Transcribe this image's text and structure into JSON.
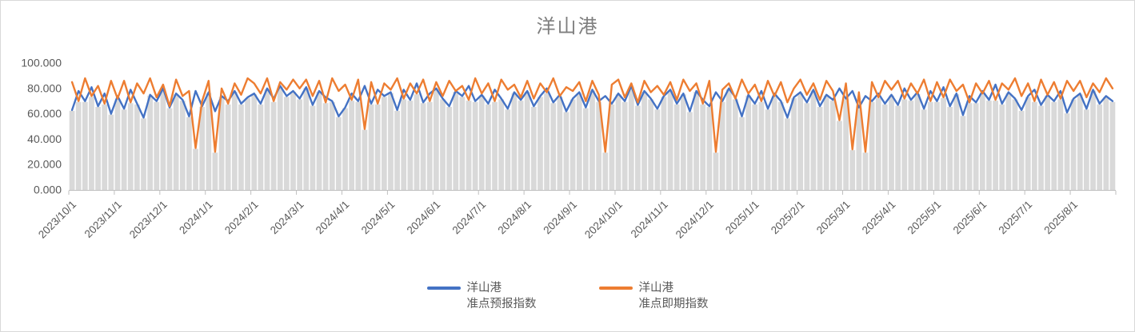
{
  "title": "洋山港",
  "colors": {
    "forecast_line": "#4472C4",
    "spot_line": "#ED7D31",
    "background_bar": "#D9D9D9",
    "axis_line": "#BFBFBF",
    "axis_text": "#595959",
    "title_text": "#7F7F7F"
  },
  "legend": {
    "position": "bottom",
    "items": [
      {
        "line1": "洋山港",
        "line2": "准点预报指数",
        "color": "#4472C4"
      },
      {
        "line1": "洋山港",
        "line2": "准点即期指数",
        "color": "#ED7D31"
      }
    ]
  },
  "chart_data": {
    "type": "line",
    "title": "洋山港",
    "xlabel": "",
    "ylabel": "",
    "ylim": [
      0,
      100
    ],
    "grid": false,
    "legend_position": "bottom",
    "y_tick_values": [
      0,
      20,
      40,
      60,
      80,
      100
    ],
    "y_tick_labels": [
      "0.000",
      "20.000",
      "40.000",
      "60.000",
      "80.000",
      "100.000"
    ],
    "x_tick_labels": [
      "2023/10/1",
      "2023/11/1",
      "2023/12/1",
      "2024/1/1",
      "2024/2/1",
      "2024/3/1",
      "2024/4/1",
      "2024/5/1",
      "2024/6/1",
      "2024/7/1",
      "2024/8/1",
      "2024/9/1",
      "2024/10/1",
      "2024/11/1",
      "2024/12/1",
      "2025/1/1",
      "2025/2/1",
      "2025/3/1",
      "2025/4/1",
      "2025/5/1",
      "2025/6/1",
      "2025/7/1",
      "2025/8/1"
    ],
    "points_per_month": 7,
    "background_bars": "gray columns drawn from 0 up to the lower of the two series at each point",
    "series": [
      {
        "name": "洋山港 准点预报指数",
        "color": "#4472C4",
        "values": [
          63,
          78,
          70,
          81,
          66,
          76,
          60,
          74,
          64,
          79,
          68,
          57,
          75,
          70,
          80,
          65,
          76,
          71,
          58,
          78,
          66,
          77,
          62,
          74,
          70,
          78,
          68,
          73,
          76,
          68,
          80,
          72,
          82,
          74,
          78,
          72,
          81,
          67,
          78,
          73,
          70,
          58,
          65,
          76,
          70,
          82,
          68,
          79,
          74,
          77,
          63,
          79,
          71,
          84,
          69,
          76,
          80,
          72,
          66,
          78,
          74,
          82,
          70,
          75,
          68,
          79,
          72,
          64,
          77,
          71,
          78,
          66,
          74,
          80,
          69,
          75,
          62,
          72,
          77,
          65,
          79,
          70,
          74,
          68,
          76,
          70,
          82,
          67,
          78,
          72,
          64,
          74,
          79,
          68,
          76,
          62,
          78,
          71,
          66,
          77,
          70,
          80,
          73,
          58,
          75,
          68,
          78,
          64,
          76,
          70,
          57,
          73,
          77,
          69,
          79,
          66,
          75,
          71,
          80,
          72,
          78,
          65,
          74,
          70,
          76,
          68,
          75,
          67,
          80,
          71,
          77,
          64,
          78,
          70,
          81,
          66,
          76,
          59,
          74,
          69,
          78,
          71,
          83,
          68,
          77,
          72,
          63,
          74,
          79,
          67,
          75,
          70,
          78,
          61,
          72,
          76,
          64,
          79,
          68,
          74,
          70
        ]
      },
      {
        "name": "洋山港 准点即期指数",
        "color": "#ED7D31",
        "values": [
          85,
          70,
          88,
          74,
          82,
          68,
          86,
          72,
          86,
          69,
          84,
          76,
          88,
          73,
          83,
          66,
          87,
          74,
          78,
          33,
          70,
          86,
          30,
          80,
          68,
          84,
          75,
          88,
          84,
          76,
          88,
          70,
          85,
          79,
          87,
          80,
          87,
          74,
          86,
          69,
          88,
          78,
          83,
          71,
          87,
          48,
          85,
          68,
          84,
          79,
          88,
          72,
          84,
          76,
          87,
          70,
          85,
          74,
          86,
          78,
          82,
          71,
          88,
          76,
          84,
          70,
          87,
          79,
          83,
          73,
          86,
          72,
          84,
          77,
          88,
          74,
          81,
          78,
          85,
          70,
          86,
          75,
          30,
          83,
          87,
          73,
          84,
          69,
          86,
          77,
          82,
          75,
          85,
          71,
          87,
          78,
          84,
          68,
          86,
          30,
          79,
          84,
          72,
          87,
          76,
          83,
          70,
          86,
          74,
          85,
          69,
          80,
          87,
          75,
          84,
          71,
          86,
          78,
          55,
          84,
          32,
          77,
          30,
          85,
          73,
          86,
          79,
          86,
          72,
          84,
          76,
          87,
          70,
          85,
          73,
          87,
          78,
          83,
          69,
          84,
          76,
          86,
          71,
          84,
          79,
          88,
          74,
          84,
          70,
          87,
          75,
          85,
          72,
          86,
          78,
          86,
          73,
          84,
          77,
          88,
          80
        ]
      }
    ]
  }
}
